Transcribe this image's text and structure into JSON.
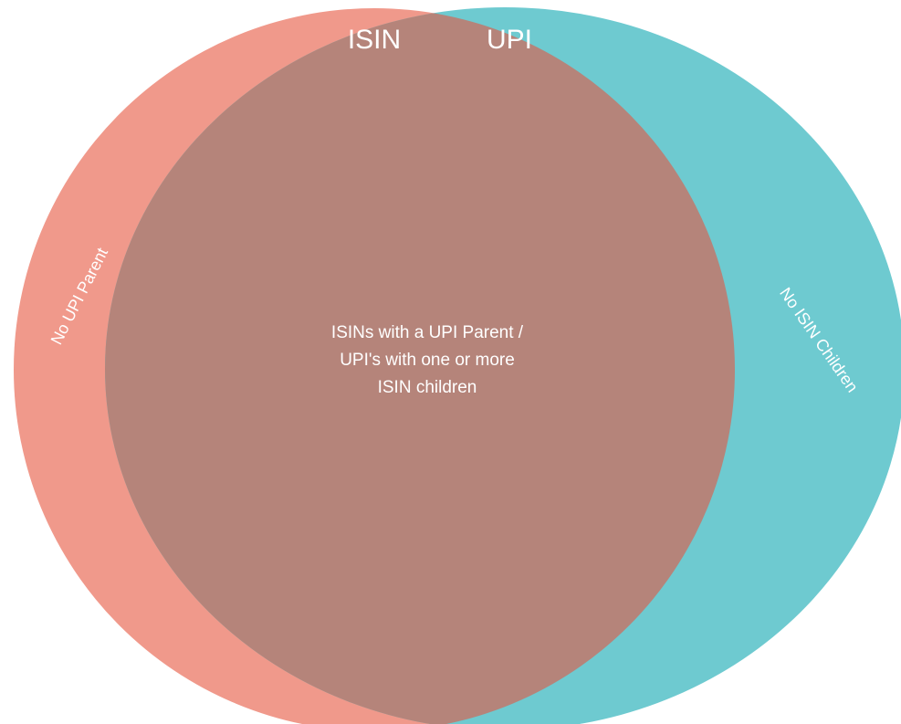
{
  "sets": [
    {
      "label": "ISIN",
      "only_label": "No UPI Parent"
    },
    {
      "label": "UPI",
      "only_label": "No ISIN Children"
    }
  ],
  "intersection": {
    "lines": [
      "ISINs with a UPI Parent /",
      "UPI's with one or more",
      "ISIN children"
    ]
  }
}
